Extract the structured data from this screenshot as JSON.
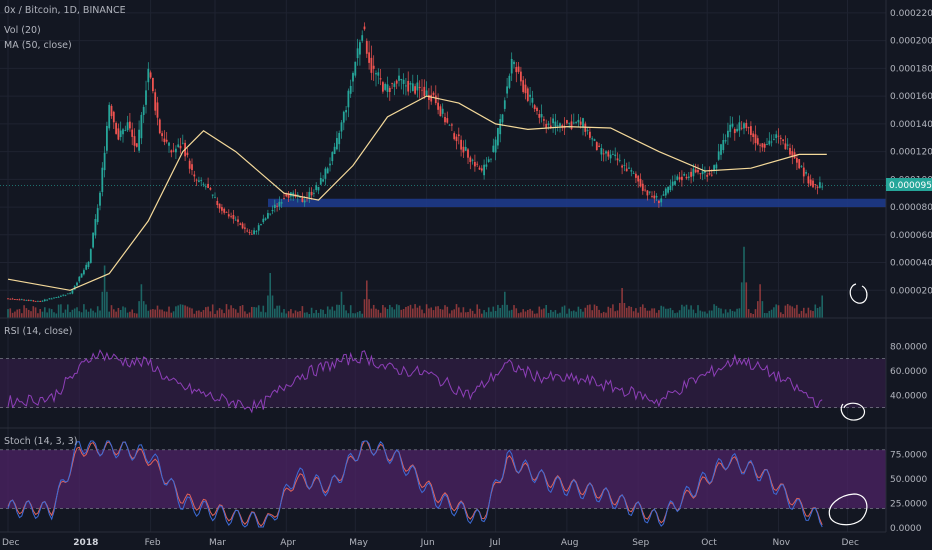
{
  "header": {
    "symbol_title": "0x / Bitcoin, 1D, BINANCE",
    "vol_label": "Vol (20)",
    "ma_label": "MA (50, close)",
    "rsi_label": "RSI (14, close)",
    "stoch_label": "Stoch (14, 3, 3)"
  },
  "colors": {
    "background": "#131722",
    "grid": "#1f2331",
    "up_candle": "#26a69a",
    "down_candle": "#ef5350",
    "ma_line": "#f4d99a",
    "support_zone": "#1e3a8a",
    "rsi_line": "#8e3fb8",
    "rsi_band": "#3b1f4e",
    "stoch_k": "#3d6bd6",
    "stoch_d": "#e0625a",
    "stoch_band": "#4d2366",
    "price_tag": "#26a69a",
    "annotation": "#ffffff"
  },
  "chart_data": [
    {
      "type": "candlestick",
      "title": "0x / Bitcoin, 1D, BINANCE",
      "x_ticks": [
        "Dec",
        "2018",
        "Feb",
        "Mar",
        "Apr",
        "May",
        "Jun",
        "Jul",
        "Aug",
        "Sep",
        "Oct",
        "Nov",
        "Dec"
      ],
      "y_ticks": [
        "0.00022000",
        "0.00020000",
        "0.00018000",
        "0.00016000",
        "0.00014000",
        "0.00012000",
        "0.00010000",
        "0.00008000",
        "0.00006000",
        "0.00004000",
        "0.00002000"
      ],
      "ylim": [
        0,
        0.000225
      ],
      "last_price": "0.00009535",
      "support_zone": [
        8e-05,
        8.6e-05
      ],
      "price_path": [
        [
          "Dec 1",
          1.4e-05
        ],
        [
          "Dec 15",
          1.2e-05
        ],
        [
          "Dec 28",
          1.8e-05
        ],
        [
          "Jan 5",
          4e-05
        ],
        [
          "Jan 10",
          9e-05
        ],
        [
          "Jan 14",
          0.000155
        ],
        [
          "Jan 18",
          0.00013
        ],
        [
          "Jan 22",
          0.00014
        ],
        [
          "Jan 26",
          0.00012
        ],
        [
          "Jan 31",
          0.00018
        ],
        [
          "Feb 5",
          0.000135
        ],
        [
          "Feb 10",
          0.00012
        ],
        [
          "Feb 15",
          0.000125
        ],
        [
          "Feb 20",
          0.0001
        ],
        [
          "Feb 25",
          9.5e-05
        ],
        [
          "Mar 3",
          8e-05
        ],
        [
          "Mar 10",
          7e-05
        ],
        [
          "Mar 17",
          6e-05
        ],
        [
          "Mar 22",
          7e-05
        ],
        [
          "Apr 1",
          9e-05
        ],
        [
          "Apr 8",
          8.5e-05
        ],
        [
          "Apr 15",
          9.5e-05
        ],
        [
          "Apr 22",
          0.00012
        ],
        [
          "Apr 28",
          0.00016
        ],
        [
          "May 4",
          0.00021
        ],
        [
          "May 8",
          0.00018
        ],
        [
          "May 14",
          0.000165
        ],
        [
          "May 20",
          0.00017
        ],
        [
          "May 28",
          0.000165
        ],
        [
          "Jun 4",
          0.00016
        ],
        [
          "Jun 10",
          0.00014
        ],
        [
          "Jun 18",
          0.00012
        ],
        [
          "Jun 25",
          0.000105
        ],
        [
          "Jul 1",
          0.000125
        ],
        [
          "Jul 8",
          0.000185
        ],
        [
          "Jul 15",
          0.00016
        ],
        [
          "Jul 22",
          0.00014
        ],
        [
          "Aug 1",
          0.00014
        ],
        [
          "Aug 8",
          0.00014
        ],
        [
          "Aug 15",
          0.00012
        ],
        [
          "Aug 22",
          0.000115
        ],
        [
          "Aug 29",
          0.000105
        ],
        [
          "Sep 5",
          9e-05
        ],
        [
          "Sep 10",
          8.5e-05
        ],
        [
          "Sep 18",
          0.0001
        ],
        [
          "Sep 25",
          0.000105
        ],
        [
          "Oct 3",
          0.000105
        ],
        [
          "Oct 10",
          0.000135
        ],
        [
          "Oct 17",
          0.00014
        ],
        [
          "Oct 24",
          0.000125
        ],
        [
          "Oct 31",
          0.00013
        ],
        [
          "Nov 7",
          0.00012
        ],
        [
          "Nov 12",
          0.000105
        ],
        [
          "Nov 16",
          9.5e-05
        ],
        [
          "Nov 20",
          9.54e-05
        ]
      ],
      "ma_path": [
        [
          "Dec 1",
          2.8e-05
        ],
        [
          "Dec 28",
          2e-05
        ],
        [
          "Jan 14",
          3.2e-05
        ],
        [
          "Jan 31",
          7e-05
        ],
        [
          "Feb 15",
          0.00012
        ],
        [
          "Feb 24",
          0.000135
        ],
        [
          "Mar 10",
          0.00012
        ],
        [
          "Mar 31",
          9e-05
        ],
        [
          "Apr 15",
          8.5e-05
        ],
        [
          "Apr 30",
          0.00011
        ],
        [
          "May 15",
          0.000145
        ],
        [
          "Jun 1",
          0.00016
        ],
        [
          "Jun 15",
          0.000155
        ],
        [
          "Jul 1",
          0.00014
        ],
        [
          "Jul 15",
          0.000136
        ],
        [
          "Aug 1",
          0.000138
        ],
        [
          "Aug 20",
          0.000137
        ],
        [
          "Sep 10",
          0.00012
        ],
        [
          "Sep 30",
          0.000106
        ],
        [
          "Oct 20",
          0.000108
        ],
        [
          "Nov 10",
          0.000118
        ],
        [
          "Nov 22",
          0.000118
        ]
      ]
    },
    {
      "type": "bar",
      "title": "Vol (20)",
      "note": "volume histogram with spikes",
      "spikes": [
        [
          "Jan 12",
          0.7
        ],
        [
          "Jan 28",
          0.45
        ],
        [
          "Mar 25",
          0.6
        ],
        [
          "Apr 25",
          0.35
        ],
        [
          "May 6",
          0.5
        ],
        [
          "Jul 5",
          0.35
        ],
        [
          "Aug 25",
          0.4
        ],
        [
          "Oct 17",
          0.95
        ],
        [
          "Oct 24",
          0.45
        ],
        [
          "Nov 20",
          0.3
        ]
      ]
    },
    {
      "type": "line",
      "title": "RSI (14, close)",
      "y_ticks": [
        "80.0000",
        "60.0000",
        "40.0000"
      ],
      "ylim": [
        20,
        90
      ],
      "band": [
        30,
        70
      ],
      "path": [
        [
          "Dec 1",
          35
        ],
        [
          "Dec 20",
          38
        ],
        [
          "Jan 8",
          75
        ],
        [
          "Jan 20",
          68
        ],
        [
          "Feb 1",
          66
        ],
        [
          "Feb 10",
          50
        ],
        [
          "Mar 1",
          38
        ],
        [
          "Mar 20",
          30
        ],
        [
          "Apr 5",
          55
        ],
        [
          "Apr 25",
          68
        ],
        [
          "May 5",
          72
        ],
        [
          "May 15",
          62
        ],
        [
          "Jun 1",
          58
        ],
        [
          "Jun 20",
          40
        ],
        [
          "Jul 6",
          65
        ],
        [
          "Jul 20",
          55
        ],
        [
          "Aug 10",
          52
        ],
        [
          "Aug 30",
          42
        ],
        [
          "Sep 10",
          35
        ],
        [
          "Sep 25",
          52
        ],
        [
          "Oct 15",
          70
        ],
        [
          "Nov 1",
          55
        ],
        [
          "Nov 20",
          32
        ]
      ]
    },
    {
      "type": "line",
      "title": "Stoch (14, 3, 3)",
      "y_ticks": [
        "75.0000",
        "50.0000",
        "25.0000",
        "0.0000"
      ],
      "ylim": [
        0,
        90
      ],
      "band": [
        20,
        80
      ],
      "series": [
        {
          "name": "",
          "path": [
            [
              "Dec 1",
              20
            ],
            [
              "Dec 20",
              18
            ],
            [
              "Jan 1",
              85
            ],
            [
              "Jan 20",
              80
            ],
            [
              "Feb 1",
              75
            ],
            [
              "Feb 15",
              25
            ],
            [
              "Mar 10",
              10
            ],
            [
              "Mar 25",
              5
            ],
            [
              "Apr 5",
              55
            ],
            [
              "Apr 20",
              40
            ],
            [
              "May 5",
              88
            ],
            [
              "May 20",
              70
            ],
            [
              "Jun 5",
              30
            ],
            [
              "Jun 25",
              8
            ],
            [
              "Jul 6",
              72
            ],
            [
              "Jul 25",
              45
            ],
            [
              "Aug 15",
              35
            ],
            [
              "Aug 30",
              20
            ],
            [
              "Sep 10",
              8
            ],
            [
              "Sep 25",
              40
            ],
            [
              "Oct 10",
              70
            ],
            [
              "Oct 25",
              55
            ],
            [
              "Nov 10",
              20
            ],
            [
              "Nov 20",
              8
            ],
            [
              "Nov 28",
              20
            ]
          ]
        },
        {
          "name": "",
          "path": [
            [
              "Dec 1",
              22
            ],
            [
              "Dec 20",
              20
            ],
            [
              "Jan 1",
              80
            ],
            [
              "Jan 20",
              82
            ],
            [
              "Feb 1",
              70
            ],
            [
              "Feb 15",
              30
            ],
            [
              "Mar 10",
              12
            ],
            [
              "Mar 25",
              8
            ],
            [
              "Apr 5",
              50
            ],
            [
              "Apr 20",
              42
            ],
            [
              "May 5",
              85
            ],
            [
              "May 20",
              72
            ],
            [
              "Jun 5",
              34
            ],
            [
              "Jun 25",
              10
            ],
            [
              "Jul 6",
              68
            ],
            [
              "Jul 25",
              48
            ],
            [
              "Aug 15",
              37
            ],
            [
              "Aug 30",
              22
            ],
            [
              "Sep 10",
              10
            ],
            [
              "Sep 25",
              37
            ],
            [
              "Oct 10",
              68
            ],
            [
              "Oct 25",
              57
            ],
            [
              "Nov 10",
              23
            ],
            [
              "Nov 20",
              10
            ],
            [
              "Nov 28",
              18
            ]
          ]
        }
      ]
    }
  ]
}
